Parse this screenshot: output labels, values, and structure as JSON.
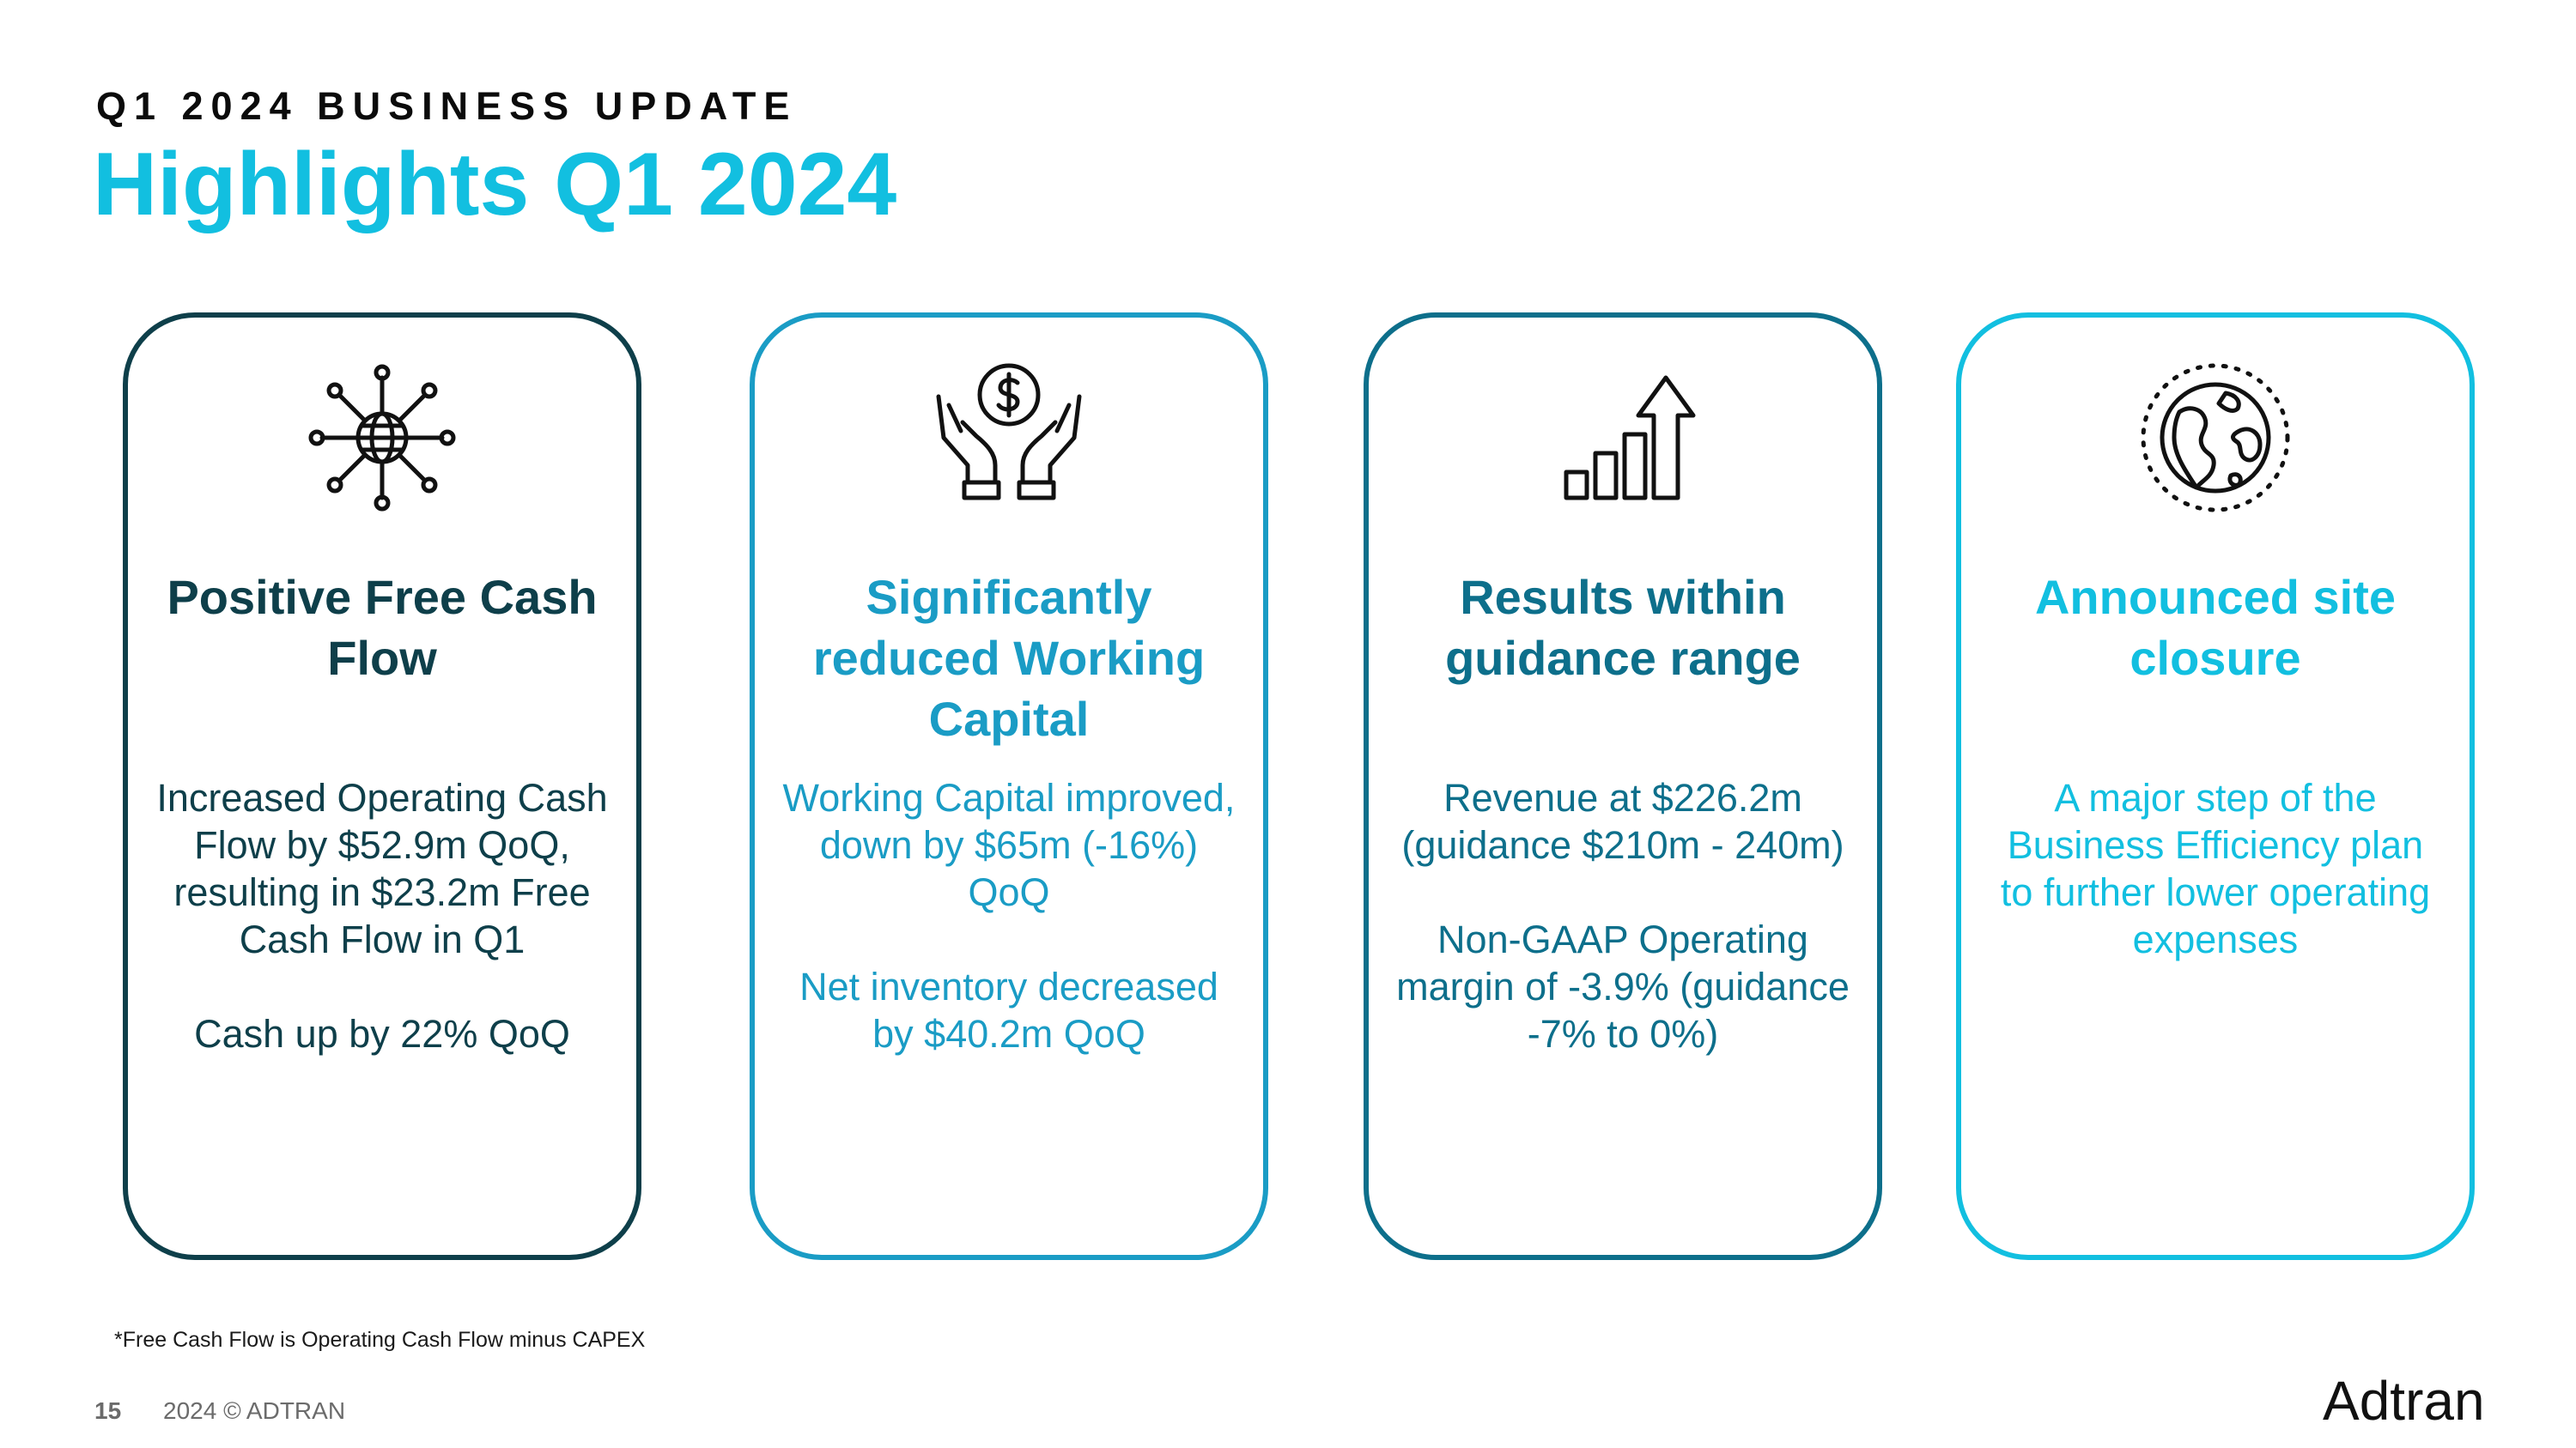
{
  "header": {
    "kicker": "Q1 2024 BUSINESS UPDATE",
    "title": "Highlights Q1 2024"
  },
  "cards": [
    {
      "title": "Positive Free Cash Flow",
      "icon": "network-globe-icon",
      "color": "#0e3f4a",
      "paragraphs": [
        "Increased Operating Cash Flow by $52.9m QoQ, resulting in $23.2m Free Cash Flow in Q1",
        "Cash up by 22% QoQ"
      ]
    },
    {
      "title": "Significantly reduced Working Capital",
      "icon": "hands-dollar-icon",
      "color": "#1a9cc5",
      "paragraphs": [
        "Working Capital improved, down by $65m (-16%) QoQ",
        "Net inventory decreased by $40.2m QoQ"
      ]
    },
    {
      "title": "Results within guidance range",
      "icon": "bar-growth-icon",
      "color": "#0d6f8b",
      "paragraphs": [
        "Revenue at $226.2m (guidance  $210m - 240m)",
        "Non-GAAP Operating margin of -3.9% (guidance -7% to 0%)"
      ]
    },
    {
      "title": "Announced site closure",
      "icon": "earth-globe-icon",
      "color": "#12bfe0",
      "paragraphs": [
        "A major step of the Business Efficiency plan to further lower operating expenses"
      ]
    }
  ],
  "footer": {
    "footnote": "*Free Cash Flow is Operating Cash Flow minus CAPEX",
    "page_number": "15",
    "copyright": "2024 © ADTRAN",
    "logo_text": "Adtran"
  }
}
